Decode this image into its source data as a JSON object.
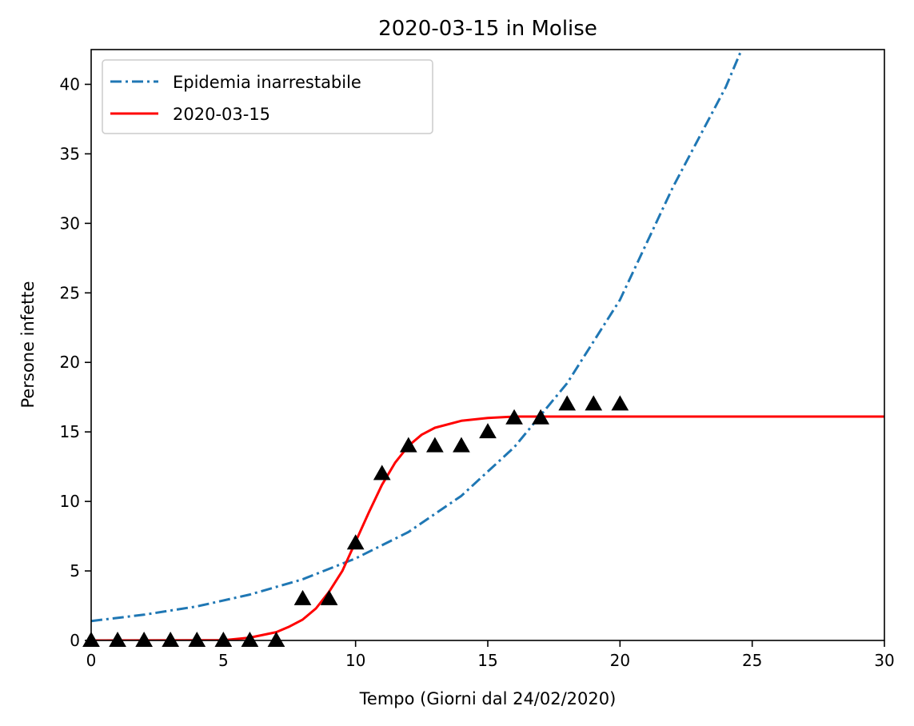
{
  "chart_data": {
    "type": "line",
    "title": "2020-03-15 in Molise",
    "xlabel": "Tempo (Giorni dal 24/02/2020)",
    "ylabel": "Persone infette",
    "xlim": [
      0,
      30
    ],
    "ylim": [
      0,
      42.5
    ],
    "xticks": [
      "0",
      "5",
      "10",
      "15",
      "20",
      "25",
      "30"
    ],
    "yticks": [
      "0",
      "5",
      "10",
      "15",
      "20",
      "25",
      "30",
      "35",
      "40"
    ],
    "grid": false,
    "legend_position": "top-left",
    "series": [
      {
        "name": "Epidemia inarrestabile",
        "style": "dashdot",
        "color": "#1f77b4",
        "x": [
          0,
          2,
          4,
          6,
          8,
          10,
          12,
          14,
          16,
          18,
          20,
          22,
          24,
          24.6
        ],
        "y": [
          1.4,
          1.85,
          2.45,
          3.3,
          4.4,
          5.9,
          7.8,
          10.4,
          13.9,
          18.5,
          24.5,
          32.6,
          39.8,
          42.5
        ]
      },
      {
        "name": "2020-03-15",
        "style": "solid",
        "color": "#ff0000",
        "x": [
          0,
          5,
          6,
          7,
          7.5,
          8,
          8.5,
          9,
          9.5,
          10,
          10.5,
          11,
          11.5,
          12,
          12.5,
          13,
          14,
          15,
          16,
          17,
          18,
          20,
          25,
          30
        ],
        "y": [
          0,
          0.02,
          0.2,
          0.6,
          1.0,
          1.5,
          2.3,
          3.5,
          5.0,
          7.1,
          9.2,
          11.2,
          12.8,
          14.0,
          14.8,
          15.3,
          15.8,
          16.0,
          16.1,
          16.1,
          16.1,
          16.1,
          16.1,
          16.1
        ]
      }
    ],
    "observed": {
      "marker": "triangle",
      "color": "#000000",
      "x": [
        0,
        1,
        2,
        3,
        4,
        5,
        6,
        7,
        8,
        9,
        10,
        11,
        12,
        13,
        14,
        15,
        16,
        17,
        18,
        19,
        20
      ],
      "y": [
        0,
        0,
        0,
        0,
        0,
        0,
        0,
        0,
        3,
        3,
        7,
        12,
        14,
        14,
        14,
        15,
        16,
        16,
        17,
        17,
        17
      ]
    }
  }
}
